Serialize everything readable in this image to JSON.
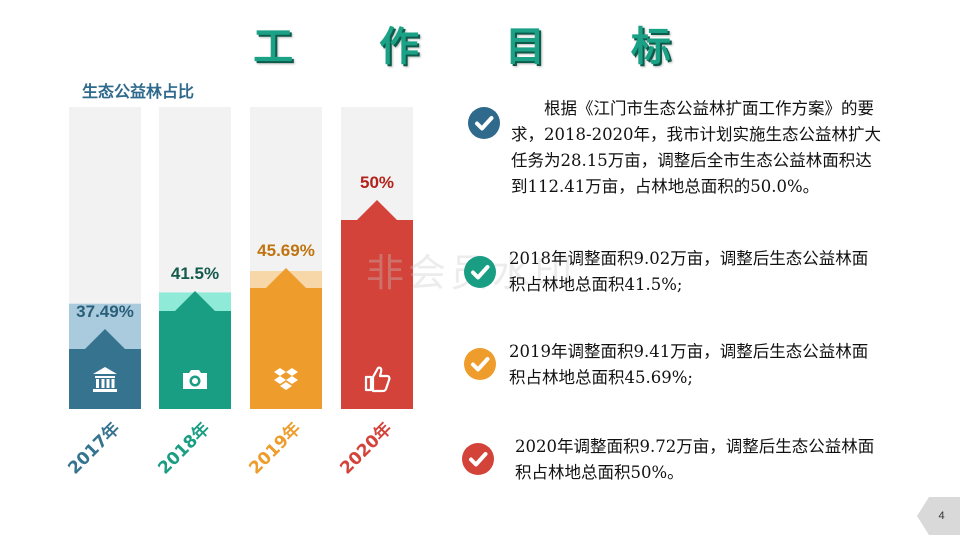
{
  "title": "工 作 目 标",
  "chart_title": "生态公益林占比",
  "watermark": "非会员水印",
  "page_number": "4",
  "chart_data": {
    "type": "bar",
    "categories": [
      "2017年",
      "2018年",
      "2019年",
      "2020年"
    ],
    "values": [
      37.49,
      41.5,
      45.69,
      50
    ],
    "value_labels": [
      "37.49%",
      "41.5%",
      "45.69%",
      "50%"
    ],
    "ylim": [
      0,
      100
    ],
    "colors": {
      "dark": [
        "#36738f",
        "#199d83",
        "#ee9c2b",
        "#d3433a"
      ],
      "light": [
        "#a9cbdd",
        "#8fead8",
        "#f7d7a7",
        "#ecb0ac"
      ],
      "label": [
        "#2a5f7a",
        "#135a4c",
        "#c07410",
        "#b3231b"
      ]
    },
    "icons": [
      "bank-icon",
      "camera-icon",
      "dropbox-icon",
      "thumbs-up-icon"
    ]
  },
  "items": [
    {
      "icon": "check-circle-icon",
      "color": "#2f6a8c",
      "text": "根据《江门市生态公益林扩面工作方案》的要求，2018-2020年，我市计划实施生态公益林扩大任务为28.15万亩，调整后全市生态公益林面积达到112.41万亩，占林地总面积的50.0%。"
    },
    {
      "icon": "check-circle-icon",
      "color": "#199d83",
      "text": "2018年调整面积9.02万亩，调整后生态公益林面积占林地总面积41.5%;"
    },
    {
      "icon": "check-circle-icon",
      "color": "#ee9c2b",
      "text": "2019年调整面积9.41万亩，调整后生态公益林面积占林地总面积45.69%;"
    },
    {
      "icon": "check-circle-icon",
      "color": "#d3433a",
      "text": "2020年调整面积9.72万亩，调整后生态公益林面积占林地总面积50%。"
    }
  ]
}
